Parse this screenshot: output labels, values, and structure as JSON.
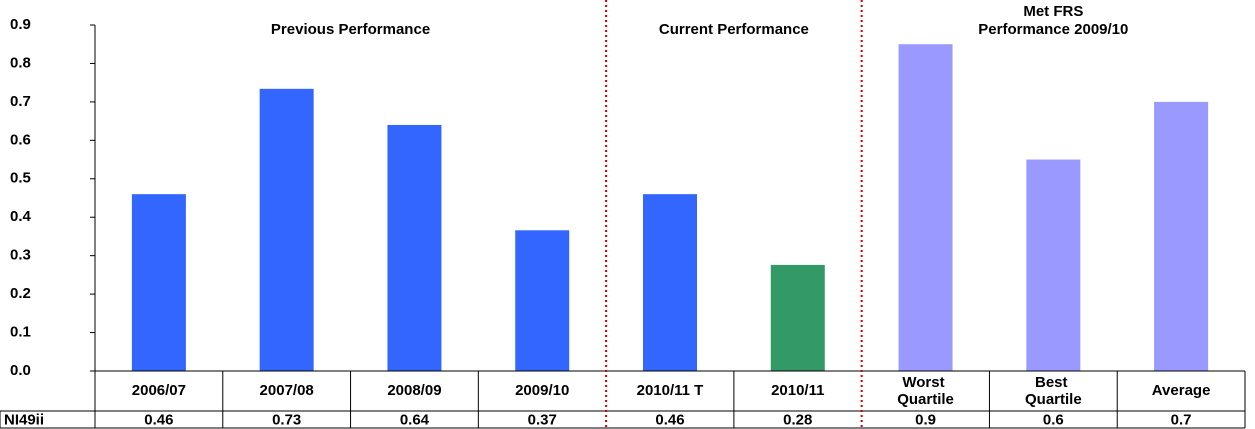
{
  "chart_data": {
    "type": "bar",
    "categories": [
      "2006/07",
      "2007/08",
      "2008/09",
      "2009/10",
      "2010/11 T",
      "2010/11",
      "Worst Quartile",
      "Best Quartile",
      "Average"
    ],
    "series": [
      {
        "name": "NI49ii",
        "values": [
          0.46,
          0.734,
          0.64,
          0.366,
          0.46,
          0.276,
          0.85,
          0.55,
          0.7
        ],
        "value_labels": [
          "0.46",
          "0.73",
          "0.64",
          "0.37",
          "0.46",
          "0.28",
          "0.9",
          "0.6",
          "0.7"
        ],
        "colors": [
          "#3366ff",
          "#3366ff",
          "#3366ff",
          "#3366ff",
          "#3366ff",
          "#339966",
          "#9999ff",
          "#9999ff",
          "#9999ff"
        ]
      }
    ],
    "sections": [
      [
        "Previous Performance"
      ],
      [
        "Current Performance"
      ],
      [
        "Met FRS",
        "Performance 2009/10"
      ]
    ],
    "ylim": [
      0,
      0.9
    ],
    "yticks": [
      {
        "value": 0,
        "label": "0.0"
      },
      0.1,
      0.2,
      0.3,
      0.4,
      0.5,
      0.6,
      0.7,
      0.8,
      0.9
    ],
    "grid": false
  }
}
